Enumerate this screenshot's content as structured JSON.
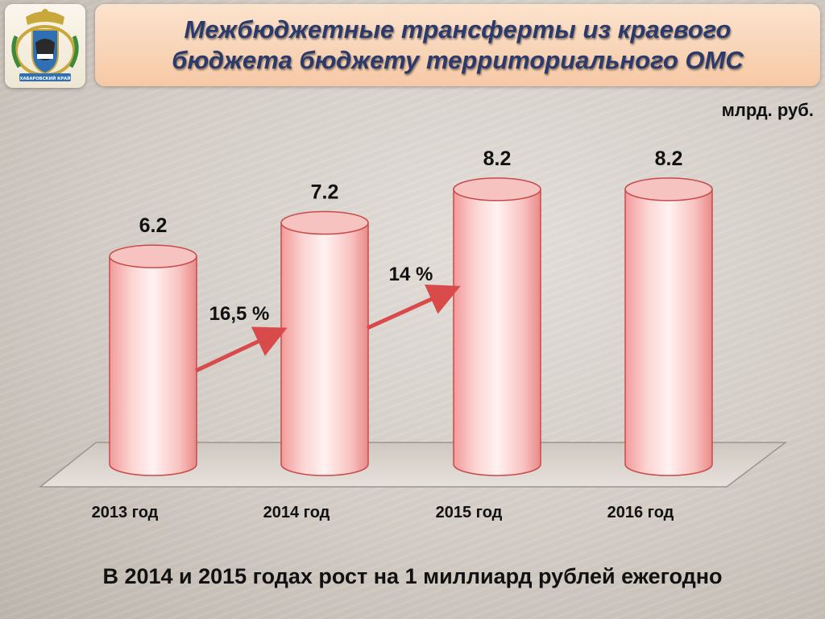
{
  "header": {
    "title_line1": "Межбюджетные трансферты из краевого",
    "title_line2": "бюджета бюджету территориального ОМС",
    "emblem_caption": "ХАБАРОВСКИЙ КРАЙ"
  },
  "unit_label": "млрд. руб.",
  "footer_text": "В 2014 и 2015 годах рост на 1 миллиард рублей ежегодно",
  "colors": {
    "cylinder": "#f3b3b0",
    "cylinder_edge": "#c94a4a",
    "arrow": "#d94b4b",
    "title_text": "#2b3a6b",
    "title_bg": "#f6c9a6"
  },
  "chart_data": {
    "type": "bar",
    "style": "3d-cylinder",
    "categories": [
      "2013 год",
      "2014 год",
      "2015 год",
      "2016 год"
    ],
    "values": [
      6.2,
      7.2,
      8.2,
      8.2
    ],
    "value_labels": [
      "6.2",
      "7.2",
      "8.2",
      "8.2"
    ],
    "ylabel": "млрд. руб.",
    "grid": false,
    "annotations": [
      {
        "text": "16,5 %",
        "from": "2013 год",
        "to": "2014 год"
      },
      {
        "text": "14 %",
        "from": "2014 год",
        "to": "2015 год"
      }
    ]
  }
}
